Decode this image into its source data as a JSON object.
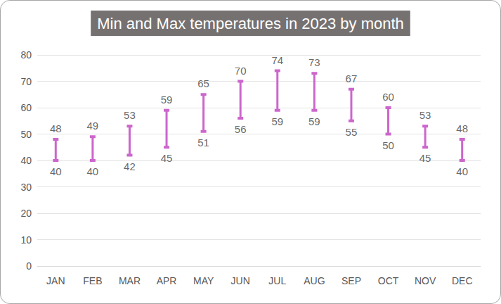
{
  "chart_data": {
    "type": "range",
    "title": "Min and Max temperatures in 2023 by month",
    "categories": [
      "JAN",
      "FEB",
      "MAR",
      "APR",
      "MAY",
      "JUN",
      "JUL",
      "AUG",
      "SEP",
      "OCT",
      "NOV",
      "DEC"
    ],
    "low": [
      40,
      40,
      42,
      45,
      51,
      56,
      59,
      59,
      55,
      50,
      45,
      40
    ],
    "high": [
      48,
      49,
      53,
      59,
      65,
      70,
      74,
      73,
      67,
      60,
      53,
      48
    ],
    "color": "#cc66cc",
    "ylim": [
      0,
      80
    ],
    "yticks": [
      0,
      10,
      20,
      30,
      40,
      50,
      60,
      70,
      80
    ],
    "grid": true,
    "data_labels": true
  }
}
